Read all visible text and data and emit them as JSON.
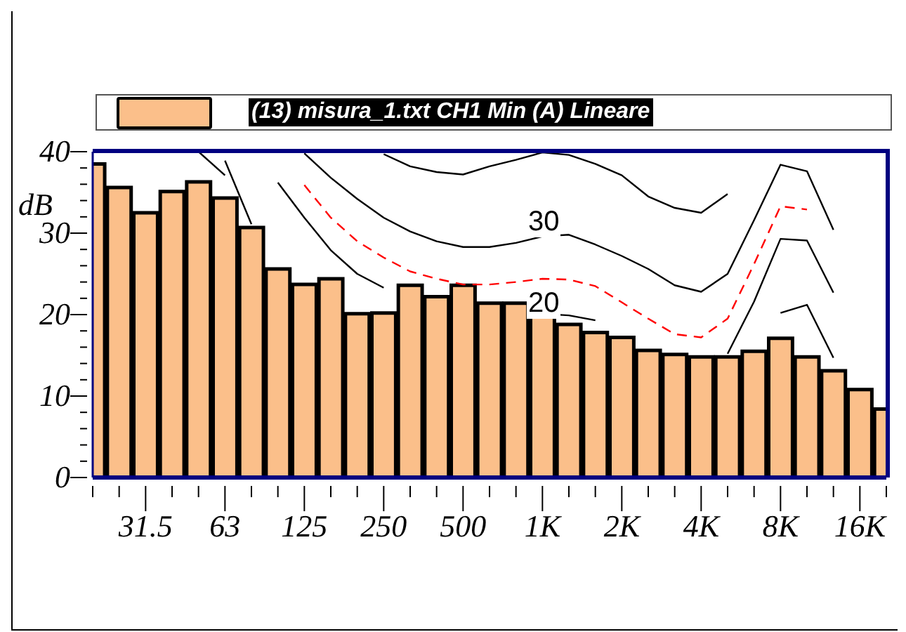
{
  "chart_data": {
    "type": "bar",
    "categories": [
      null,
      null,
      "31.5",
      null,
      null,
      "63",
      null,
      null,
      "125",
      null,
      null,
      "250",
      null,
      null,
      "500",
      null,
      null,
      "1K",
      null,
      null,
      "2K",
      null,
      null,
      "4K",
      null,
      null,
      "8K",
      null,
      null,
      "16K",
      null
    ],
    "series": [
      {
        "name": "(13) misura_1.txt CH1 Min (A) Lineare",
        "color": "#fbbf8a",
        "values": [
          38.5,
          35.6,
          32.5,
          35.1,
          36.3,
          34.3,
          30.7,
          25.6,
          23.7,
          24.4,
          20.1,
          20.2,
          23.6,
          22.2,
          23.6,
          21.4,
          21.4,
          19.8,
          18.8,
          17.8,
          17.2,
          15.6,
          15.1,
          14.8,
          14.8,
          15.5,
          17.1,
          14.8,
          13.1,
          10.8,
          8.4
        ]
      },
      {
        "type": "line",
        "color": "#000000",
        "line_style": "solid",
        "values": [
          null,
          null,
          null,
          null,
          null,
          null,
          null,
          null,
          null,
          null,
          null,
          39.7,
          38.2,
          37.5,
          37.2,
          38.2,
          39.0,
          39.9,
          39.6,
          38.5,
          37.1,
          34.5,
          33.1,
          32.5,
          34.8,
          null,
          null,
          null,
          null,
          null,
          null
        ]
      },
      {
        "type": "line",
        "color": "#000000",
        "line_style": "solid",
        "values": [
          null,
          null,
          null,
          null,
          null,
          null,
          null,
          null,
          39.8,
          36.8,
          34.2,
          31.9,
          30.2,
          29.0,
          28.3,
          28.3,
          28.8,
          29.6,
          29.8,
          28.6,
          27.2,
          25.6,
          23.6,
          22.8,
          25.0,
          31.6,
          38.4,
          37.6,
          30.4,
          null,
          null
        ]
      },
      {
        "type": "line",
        "color": "#ff0000",
        "line_style": "dashed",
        "values": [
          null,
          null,
          null,
          null,
          null,
          null,
          null,
          null,
          35.9,
          31.9,
          29.0,
          27.0,
          25.3,
          24.4,
          23.7,
          23.7,
          24.0,
          24.4,
          24.3,
          23.5,
          21.5,
          19.5,
          17.6,
          17.2,
          19.5,
          26.2,
          33.3,
          32.9,
          null,
          null,
          null
        ]
      },
      {
        "type": "line",
        "color": "#000000",
        "line_style": "solid",
        "values": [
          null,
          null,
          null,
          null,
          null,
          null,
          null,
          36.2,
          31.9,
          27.9,
          25.0,
          23.3,
          null,
          null,
          null,
          null,
          null,
          20.1,
          19.9,
          19.3,
          null,
          null,
          null,
          null,
          15.2,
          21.6,
          29.3,
          29.1,
          22.7,
          null,
          null
        ]
      },
      {
        "type": "line",
        "color": "#000000",
        "line_style": "solid",
        "values": [
          null,
          null,
          null,
          null,
          null,
          38.9,
          31.1,
          null,
          null,
          null,
          null,
          null,
          null,
          null,
          null,
          null,
          null,
          null,
          null,
          null,
          null,
          null,
          null,
          null,
          null,
          null,
          20.2,
          21.2,
          14.7,
          null,
          null
        ]
      },
      {
        "type": "line",
        "color": "#000000",
        "line_style": "solid",
        "values": [
          null,
          null,
          null,
          null,
          40,
          37.1,
          null,
          null,
          null,
          null,
          null,
          null,
          null,
          null,
          null,
          null,
          null,
          null,
          null,
          null,
          null,
          null,
          null,
          null,
          null,
          null,
          null,
          null,
          null,
          null,
          null
        ]
      }
    ],
    "ylabel": "dB",
    "ylim": [
      0,
      40
    ],
    "yticks": [
      0,
      {
        "value": 2,
        "label": null
      },
      {
        "value": 4,
        "label": null
      },
      {
        "value": 6,
        "label": null
      },
      {
        "value": 8,
        "label": null
      },
      10,
      {
        "value": 12,
        "label": null
      },
      {
        "value": 14,
        "label": null
      },
      {
        "value": 16,
        "label": null
      },
      {
        "value": 18,
        "label": null
      },
      20,
      {
        "value": 22,
        "label": null
      },
      {
        "value": 24,
        "label": null
      },
      {
        "value": 26,
        "label": null
      },
      {
        "value": 28,
        "label": null
      },
      30,
      {
        "value": 32,
        "label": null
      },
      {
        "value": 34,
        "label": null
      },
      {
        "value": 36,
        "label": null
      },
      {
        "value": 38,
        "label": null
      },
      40
    ],
    "annotations": [
      "30",
      "20"
    ],
    "marker": "none",
    "legend": "top"
  }
}
